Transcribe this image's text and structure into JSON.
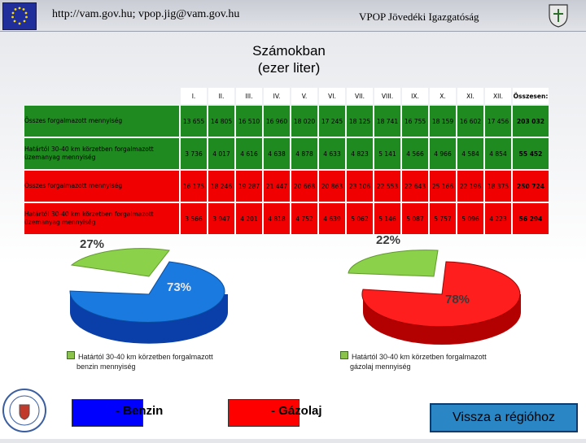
{
  "header": {
    "url_text": "http://vam.gov.hu; vpop.jig@vam.gov.hu",
    "org_text": "VPOP Jövedéki Igazgatóság"
  },
  "title": {
    "line1": "Számokban",
    "line2": "(ezer liter)"
  },
  "table": {
    "columns": [
      "I.",
      "II.",
      "III.",
      "IV.",
      "V.",
      "VI.",
      "VII.",
      "VIII.",
      "IX.",
      "X.",
      "XI.",
      "XII."
    ],
    "total_label": "Összesen:",
    "rows": [
      {
        "label": "Összes forgalmazott mennyiség",
        "values": [
          "13 655",
          "14 805",
          "16 510",
          "16 960",
          "18 020",
          "17 245",
          "18 125",
          "18 741",
          "16 755",
          "18 159",
          "16 602",
          "17 456"
        ],
        "total": "203 032"
      },
      {
        "label": "Határtól 30-40 km körzetben forgalmazott üzemanyag mennyiség",
        "values": [
          "3 736",
          "4 017",
          "4 616",
          "4 638",
          "4 878",
          "4 633",
          "4 823",
          "5 141",
          "4 566",
          "4 966",
          "4 584",
          "4 854"
        ],
        "total": "55 452"
      },
      {
        "label": "Összes forgalmazott mennyiség",
        "values": [
          "16 175",
          "18 246",
          "19 287",
          "21 447",
          "20 668",
          "20 863",
          "23 106",
          "22 553",
          "22 643",
          "25 166",
          "22 196",
          "18 375"
        ],
        "total": "250 724"
      },
      {
        "label": "Határtól 30-40 km körzetben forgalmazott üzemanyag mennyiség",
        "values": [
          "3 566",
          "3 947",
          "4 201",
          "4 818",
          "4 752",
          "4 639",
          "5 062",
          "5 146",
          "5 087",
          "5 757",
          "5 096",
          "4 223"
        ],
        "total": "56 294"
      }
    ]
  },
  "pies": {
    "benzin": {
      "small_pct": "27%",
      "large_pct": "73%",
      "legend_line1": "Határtól 30-40 km körzetben forgalmazott",
      "legend_line2": "benzin mennyiség"
    },
    "gazolaj": {
      "small_pct": "22%",
      "large_pct": "78%",
      "legend_line1": "Határtól 30-40 km körzetben forgalmazott",
      "legend_line2": "gázolaj mennyiség"
    }
  },
  "legend": {
    "benzin_label": "- Benzin",
    "gazolaj_label": "- Gázolaj",
    "benzin_color": "#0000ff",
    "gazolaj_color": "#ff0000"
  },
  "back_button": "Vissza a régióhoz"
}
